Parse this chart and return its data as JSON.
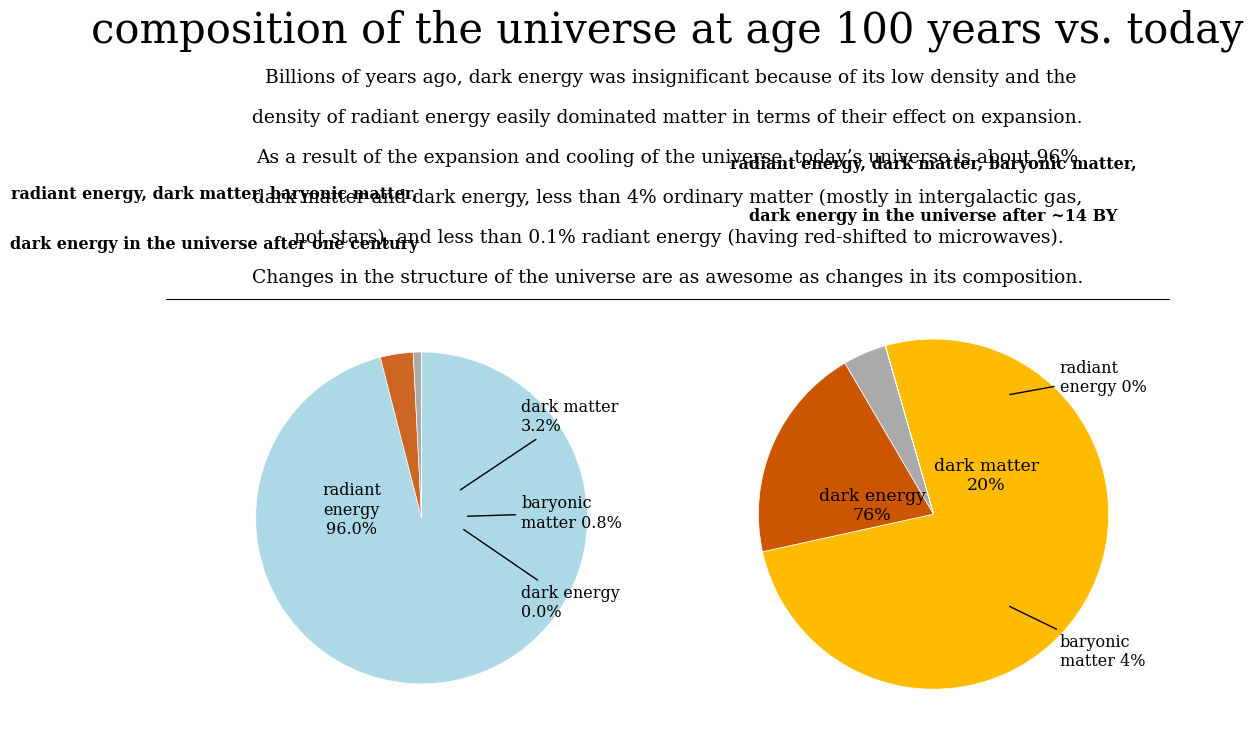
{
  "title": "composition of the universe at age 100 years vs. today",
  "description_lines": [
    " Billions of years ago, dark energy was insignificant because of its low density and the",
    "density of radiant energy easily dominated matter in terms of their effect on expansion.",
    "As a result of the expansion and cooling of the universe, today’s universe is about 96%",
    "dark matter and dark energy, less than 4% ordinary matter (mostly in intergalactic gas,",
    "    not stars), and less than 0.1% radiant energy (having red-shifted to microwaves).",
    "Changes in the structure of the universe are as awesome as changes in its composition."
  ],
  "pie1_title_line1": "radiant energy, dark matter, baryonic matter,",
  "pie1_title_line2": "dark energy in the universe after one century",
  "pie1_values": [
    96.0,
    3.2,
    0.8,
    0.001
  ],
  "pie1_colors": [
    "#add8e6",
    "#cc6622",
    "#aaaaaa",
    "#888888"
  ],
  "pie1_startangle": 90,
  "pie2_title_line1": "radiant energy, dark matter, baryonic matter,",
  "pie2_title_line2": "dark energy in the universe after ~14 BY",
  "pie2_values": [
    76,
    20,
    4,
    0.001
  ],
  "pie2_colors": [
    "#ffbb00",
    "#cc5500",
    "#aaaaaa",
    "#cc5500"
  ],
  "pie2_startangle": 106,
  "bg_color": "#ffffff",
  "title_fontsize": 30,
  "desc_fontsize": 13.5,
  "pie_title_fontsize": 11.5,
  "label_fontsize": 11.5
}
